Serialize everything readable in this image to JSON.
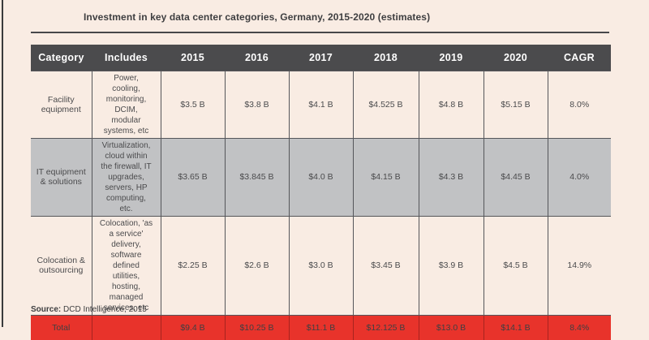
{
  "page": {
    "title": "Investment in key data center categories, Germany, 2015-2020 (estimates)",
    "source_label": "Source:",
    "source_value": " DCD Intelligence, 2015"
  },
  "colors": {
    "page_background": "#f9ece3",
    "header_background": "#4b4b4d",
    "header_text": "#ffffff",
    "highlight_row_background": "#c1c2c4",
    "total_row_background": "#e8332b",
    "body_text": "#4b4b4d",
    "cell_border": "#55565a",
    "left_accent": "#3a3a3c"
  },
  "chart_data": {
    "type": "table",
    "title": "Investment in key data center categories, Germany, 2015-2020 (estimates)",
    "columns": [
      "Category",
      "Includes",
      "2015",
      "2016",
      "2017",
      "2018",
      "2019",
      "2020",
      "CAGR"
    ],
    "rows": [
      [
        "Facility equipment",
        "Power, cooling, monitoring, DCIM, modular systems, etc",
        "$3.5 B",
        "$3.8 B",
        "$4.1 B",
        "$4.525 B",
        "$4.8 B",
        "$5.15 B",
        "8.0%"
      ],
      [
        "IT equipment & solutions",
        "Virtualization, cloud within the firewall, IT upgrades, servers, HP computing, etc.",
        "$3.65 B",
        "$3.845 B",
        "$4.0 B",
        "$4.15 B",
        "$4.3 B",
        "$4.45 B",
        "4.0%"
      ],
      [
        "Colocation & outsourcing",
        "Colocation, 'as a service' delivery, software defined utilities, hosting, managed services, etc",
        "$2.25 B",
        "$2.6 B",
        "$3.0 B",
        "$3.45 B",
        "$3.9 B",
        "$4.5 B",
        "14.9%"
      ],
      [
        "Total",
        "",
        "$9.4 B",
        "$10.25 B",
        "$11.1 B",
        "$12.125 B",
        "$13.0 B",
        "$14.1 B",
        "8.4%"
      ]
    ],
    "highlighted_row_index": 1,
    "total_row_index": 3,
    "source": "Source: DCD Intelligence, 2015"
  }
}
